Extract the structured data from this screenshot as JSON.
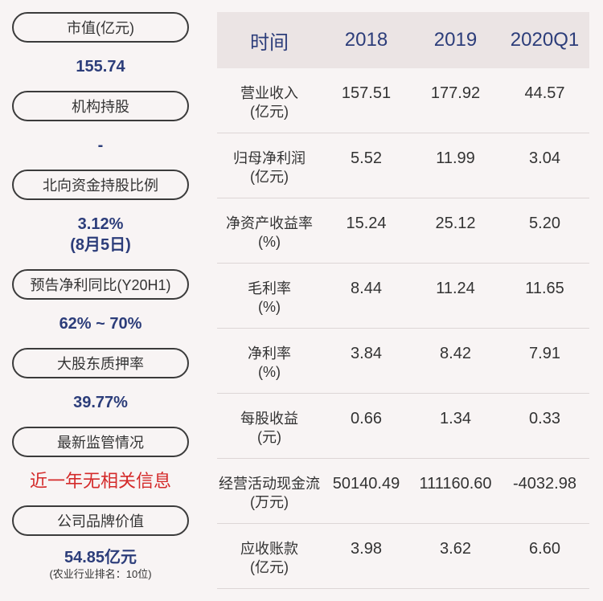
{
  "left": [
    {
      "label": "市值(亿元)",
      "value": "155.74"
    },
    {
      "label": "机构持股",
      "value": "-"
    },
    {
      "label": "北向资金持股比例",
      "value": "3.12%",
      "value2": "(8月5日)"
    },
    {
      "label": "预告净利同比(Y20H1)",
      "value": "62% ~ 70%"
    },
    {
      "label": "大股东质押率",
      "value": "39.77%"
    },
    {
      "label": "最新监管情况",
      "value": "近一年无相关信息"
    },
    {
      "label": "公司品牌价值",
      "value": "54.85亿元",
      "note": "(农业行业排名：10位)"
    }
  ],
  "table": {
    "headers": [
      "时间",
      "2018",
      "2019",
      "2020Q1"
    ],
    "rows": [
      {
        "label": "营业收入",
        "unit": "(亿元)",
        "values": [
          "157.51",
          "177.92",
          "44.57"
        ]
      },
      {
        "label": "归母净利润",
        "unit": "(亿元)",
        "values": [
          "5.52",
          "11.99",
          "3.04"
        ]
      },
      {
        "label": "净资产收益率",
        "unit": "(%)",
        "values": [
          "15.24",
          "25.12",
          "5.20"
        ]
      },
      {
        "label": "毛利率",
        "unit": "(%)",
        "values": [
          "8.44",
          "11.24",
          "11.65"
        ]
      },
      {
        "label": "净利率",
        "unit": "(%)",
        "values": [
          "3.84",
          "8.42",
          "7.91"
        ]
      },
      {
        "label": "每股收益",
        "unit": "(元)",
        "values": [
          "0.66",
          "1.34",
          "0.33"
        ]
      },
      {
        "label": "经营活动现金流",
        "unit": "(万元)",
        "values": [
          "50140.49",
          "111160.60",
          "-4032.98"
        ]
      },
      {
        "label": "应收账款",
        "unit": "(亿元)",
        "values": [
          "3.98",
          "3.62",
          "6.60"
        ]
      }
    ]
  },
  "colors": {
    "accent": "#2c3d7a",
    "alert": "#d42a2a",
    "header_bg": "#ebe4e4",
    "bg": "#f8f4f4"
  }
}
